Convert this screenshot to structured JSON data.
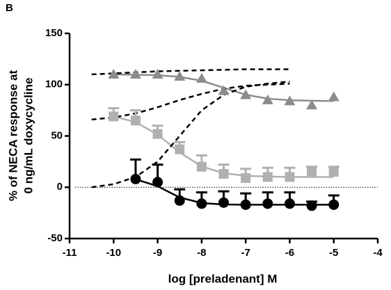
{
  "chart_data": {
    "type": "scatter",
    "panel_label": "B",
    "x_label": "log [preladenant] M",
    "y_label": [
      "% of NECA response at",
      "0 ng/mL doxycycline"
    ],
    "xlim": [
      -11,
      -4
    ],
    "ylim": [
      -50,
      150
    ],
    "xticks": [
      -11,
      -10,
      -9,
      -8,
      -7,
      -6,
      -5,
      -4
    ],
    "yticks": [
      -50,
      0,
      50,
      100,
      150
    ],
    "reference_line": 0,
    "series": [
      {
        "marker": "triangle",
        "color": "#8c8c8c",
        "x": [
          -10,
          -9.5,
          -9,
          -8.5,
          -8,
          -7.5,
          -7,
          -6.5,
          -6,
          -5.5,
          -5
        ],
        "values": [
          110,
          110,
          110,
          108,
          106,
          94,
          90,
          85,
          84,
          80,
          88
        ]
      },
      {
        "marker": "square",
        "color": "#b0b0b0",
        "x": [
          -10,
          -9.5,
          -9,
          -8.5,
          -8,
          -7.5,
          -7,
          -6.5,
          -6,
          -5.5,
          -5
        ],
        "values": [
          69,
          65,
          52,
          37,
          20,
          13,
          9,
          10,
          10,
          15,
          15
        ],
        "errors": [
          8,
          10,
          8,
          7,
          11,
          9,
          9,
          9,
          9,
          5,
          5
        ]
      },
      {
        "marker": "circle",
        "color": "#000000",
        "x": [
          -9.5,
          -9,
          -8.5,
          -8,
          -7.5,
          -7,
          -6.5,
          -6,
          -5.5,
          -5
        ],
        "values": [
          8,
          5,
          -13,
          -16,
          -15,
          -17,
          -16,
          -16,
          -18,
          -17
        ],
        "errors": [
          19,
          17,
          11,
          11,
          11,
          11,
          11,
          11,
          4,
          9
        ]
      }
    ],
    "curves": [
      {
        "style": "solid",
        "color": "#8c8c8c",
        "x": [
          -10,
          -9.5,
          -9,
          -8.5,
          -8,
          -7.5,
          -7,
          -6.5,
          -6,
          -5.5,
          -5
        ],
        "values": [
          110,
          109.7,
          109.2,
          107.6,
          103.8,
          97,
          90.2,
          86.4,
          84.8,
          84.3,
          84.1
        ]
      },
      {
        "style": "solid",
        "color": "#b0b0b0",
        "x": [
          -10,
          -9.5,
          -9,
          -8.5,
          -8,
          -7.5,
          -7,
          -6.5,
          -6,
          -5.5,
          -5
        ],
        "values": [
          69,
          63.5,
          51.3,
          34,
          20.3,
          13.7,
          11.2,
          10.4,
          10.1,
          10,
          10
        ]
      },
      {
        "style": "solid",
        "color": "#000000",
        "x": [
          -9.5,
          -9,
          -8.5,
          -8,
          -7.5,
          -7,
          -6.5,
          -6,
          -5.5,
          -5
        ],
        "values": [
          7.8,
          1,
          -9.9,
          -15.4,
          -16.8,
          -17,
          -17,
          -17,
          -17,
          -17
        ]
      },
      {
        "style": "dashed",
        "color": "#000000",
        "x": [
          -10.5,
          -10,
          -9.5,
          -9,
          -8.5,
          -8,
          -7.5,
          -7,
          -6.5,
          -6
        ],
        "values": [
          110,
          111,
          112,
          113,
          113.5,
          114,
          114.5,
          115,
          115,
          115
        ]
      },
      {
        "style": "dashed",
        "color": "#000000",
        "x": [
          -10.5,
          -10,
          -9.5,
          -9,
          -8.5,
          -8,
          -7.5,
          -7,
          -6.5,
          -6
        ],
        "values": [
          66,
          68,
          72,
          78,
          85,
          91,
          96,
          99,
          100,
          101
        ]
      },
      {
        "style": "dashed",
        "color": "#000000",
        "x": [
          -10.5,
          -10,
          -9.5,
          -9,
          -8.5,
          -8,
          -7.5,
          -7,
          -6.5,
          -6
        ],
        "values": [
          0,
          3,
          10,
          25,
          50,
          75,
          90,
          98,
          101,
          103
        ]
      }
    ]
  }
}
